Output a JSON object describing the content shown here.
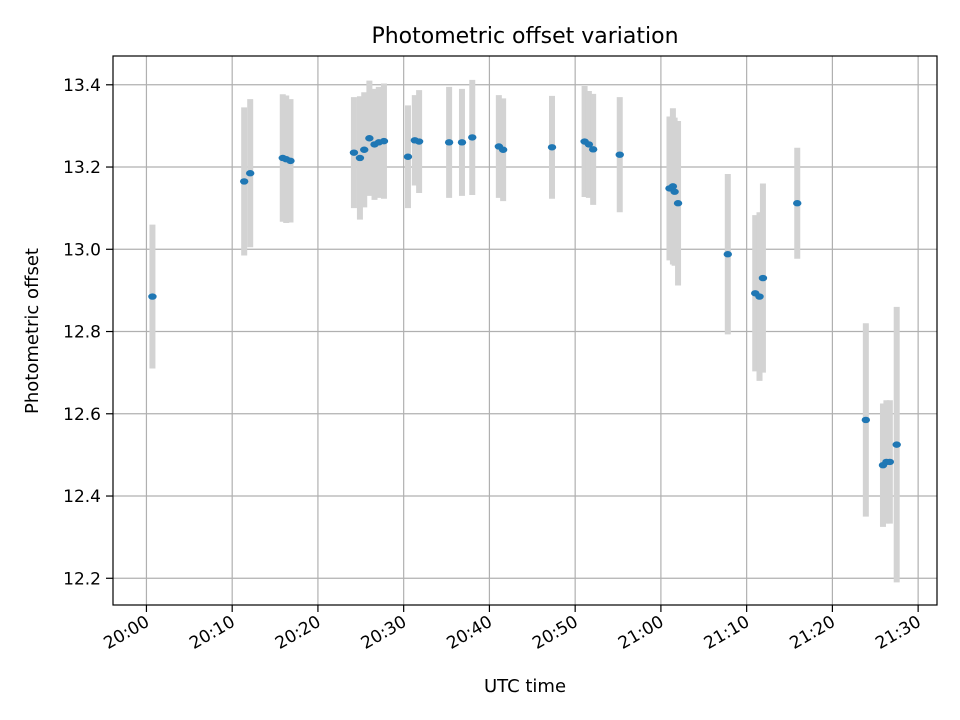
{
  "chart_data": {
    "type": "scatter",
    "title": "Photometric offset variation",
    "xlabel": "UTC time",
    "ylabel": "Photometric offset",
    "x_tick_labels": [
      "20:00",
      "20:10",
      "20:20",
      "20:30",
      "20:40",
      "20:50",
      "21:00",
      "21:10",
      "21:20",
      "21:30"
    ],
    "x_tick_minutes": [
      0,
      10,
      20,
      30,
      40,
      50,
      60,
      70,
      80,
      90
    ],
    "xlim_minutes": [
      -3.9,
      92.2
    ],
    "y_ticks": [
      12.2,
      12.4,
      12.6,
      12.8,
      13.0,
      13.2,
      13.4
    ],
    "y_tick_labels": [
      "12.2",
      "12.4",
      "12.6",
      "12.8",
      "13.0",
      "13.2",
      "13.4"
    ],
    "ylim": [
      12.135,
      13.47
    ],
    "grid": true,
    "point_color": "#1f77b4",
    "errorbar_color": "#d3d3d3",
    "points": [
      {
        "t": 0.7,
        "y": 12.885,
        "err": 0.175
      },
      {
        "t": 11.4,
        "y": 13.165,
        "err": 0.18
      },
      {
        "t": 12.1,
        "y": 13.185,
        "err": 0.18
      },
      {
        "t": 15.9,
        "y": 13.222,
        "err": 0.155
      },
      {
        "t": 16.3,
        "y": 13.219,
        "err": 0.155
      },
      {
        "t": 16.8,
        "y": 13.215,
        "err": 0.15
      },
      {
        "t": 24.2,
        "y": 13.235,
        "err": 0.135
      },
      {
        "t": 24.9,
        "y": 13.222,
        "err": 0.15
      },
      {
        "t": 25.4,
        "y": 13.242,
        "err": 0.14
      },
      {
        "t": 26.0,
        "y": 13.27,
        "err": 0.14
      },
      {
        "t": 26.6,
        "y": 13.255,
        "err": 0.135
      },
      {
        "t": 27.1,
        "y": 13.26,
        "err": 0.135
      },
      {
        "t": 27.7,
        "y": 13.263,
        "err": 0.14
      },
      {
        "t": 30.5,
        "y": 13.225,
        "err": 0.125
      },
      {
        "t": 31.3,
        "y": 13.265,
        "err": 0.11
      },
      {
        "t": 31.8,
        "y": 13.262,
        "err": 0.125
      },
      {
        "t": 35.3,
        "y": 13.26,
        "err": 0.135
      },
      {
        "t": 36.8,
        "y": 13.26,
        "err": 0.13
      },
      {
        "t": 38.0,
        "y": 13.272,
        "err": 0.14
      },
      {
        "t": 41.1,
        "y": 13.25,
        "err": 0.125
      },
      {
        "t": 41.6,
        "y": 13.242,
        "err": 0.125
      },
      {
        "t": 47.3,
        "y": 13.248,
        "err": 0.125
      },
      {
        "t": 51.1,
        "y": 13.262,
        "err": 0.135
      },
      {
        "t": 51.6,
        "y": 13.255,
        "err": 0.13
      },
      {
        "t": 52.1,
        "y": 13.243,
        "err": 0.135
      },
      {
        "t": 55.2,
        "y": 13.23,
        "err": 0.14
      },
      {
        "t": 61.0,
        "y": 13.148,
        "err": 0.175
      },
      {
        "t": 61.4,
        "y": 13.153,
        "err": 0.19
      },
      {
        "t": 61.6,
        "y": 13.14,
        "err": 0.18
      },
      {
        "t": 62.0,
        "y": 13.112,
        "err": 0.2
      },
      {
        "t": 67.8,
        "y": 12.988,
        "err": 0.195
      },
      {
        "t": 71.0,
        "y": 12.893,
        "err": 0.19
      },
      {
        "t": 71.5,
        "y": 12.885,
        "err": 0.205
      },
      {
        "t": 71.9,
        "y": 12.93,
        "err": 0.23
      },
      {
        "t": 75.9,
        "y": 13.112,
        "err": 0.135
      },
      {
        "t": 83.9,
        "y": 12.585,
        "err": 0.235
      },
      {
        "t": 85.9,
        "y": 12.475,
        "err": 0.15
      },
      {
        "t": 86.3,
        "y": 12.483,
        "err": 0.15
      },
      {
        "t": 86.7,
        "y": 12.483,
        "err": 0.15
      },
      {
        "t": 87.5,
        "y": 12.525,
        "err": 0.335
      }
    ]
  }
}
